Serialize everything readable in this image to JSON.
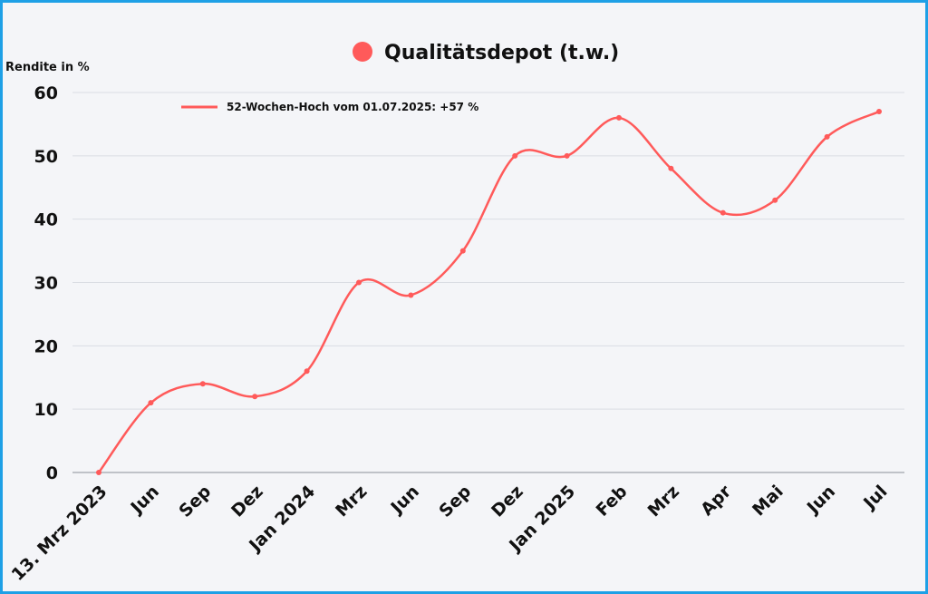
{
  "colors": {
    "frame_border": "#1ea0e6",
    "background": "#f4f5f8",
    "series": "#ff5a5a",
    "grid": "#dadde3"
  },
  "chart_data": {
    "type": "line",
    "title": "Qualitätsdepot (t.w.)",
    "ylabel": "Rendite in %",
    "xlabel": "",
    "ylim": [
      0,
      60
    ],
    "yticks": [
      0,
      10,
      20,
      30,
      40,
      50,
      60
    ],
    "grid": true,
    "legend_position": "top-left",
    "categories": [
      "13. Mrz 2023",
      "Jun",
      "Sep",
      "Dez",
      "Jan 2024",
      "Mrz",
      "Jun",
      "Sep",
      "Dez",
      "Jan 2025",
      "Feb",
      "Mrz",
      "Apr",
      "Mai",
      "Jun",
      "Jul"
    ],
    "series": [
      {
        "name": "52-Wochen-Hoch vom 01.07.2025: +57 %",
        "values": [
          0,
          11,
          14,
          12,
          16,
          30,
          28,
          35,
          50,
          50,
          56,
          48,
          41,
          43,
          53,
          57
        ]
      }
    ]
  }
}
